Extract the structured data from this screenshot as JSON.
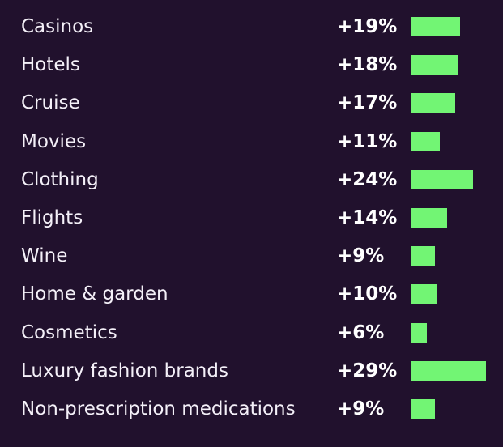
{
  "colors": {
    "background": "#21112d",
    "bar": "#72f574",
    "text": "#f4f0f8"
  },
  "chart_data": {
    "type": "bar",
    "orientation": "horizontal",
    "categories": [
      "Casinos",
      "Hotels",
      "Cruise",
      "Movies",
      "Clothing",
      "Flights",
      "Wine",
      "Home & garden",
      "Cosmetics",
      "Luxury fashion brands",
      "Non-prescription medications"
    ],
    "values": [
      19,
      18,
      17,
      11,
      24,
      14,
      9,
      10,
      6,
      29,
      9
    ],
    "value_labels": [
      "+19%",
      "+18%",
      "+17%",
      "+11%",
      "+24%",
      "+14%",
      "+9%",
      "+10%",
      "+6%",
      "+29%",
      "+9%"
    ],
    "unit": "%",
    "xlim": [
      0,
      29
    ],
    "grid": false,
    "legend": "none",
    "title": "",
    "xlabel": "",
    "ylabel": ""
  }
}
